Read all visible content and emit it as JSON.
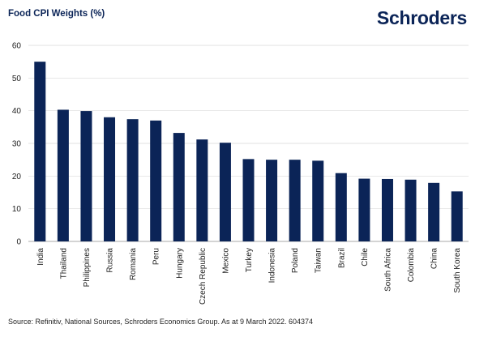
{
  "header": {
    "title": "Food CPI Weights (%)",
    "brand": "Schroders"
  },
  "footer": {
    "source": "Source: Refinitiv, National Sources, Schroders Economics Group. As at 9 March 2022. 604374"
  },
  "colors": {
    "bar": "#0b2457",
    "grid": "#d9d9d9",
    "text": "#222222"
  },
  "chart_data": {
    "type": "bar",
    "title": "Food CPI Weights (%)",
    "xlabel": "",
    "ylabel": "",
    "ylim": [
      0,
      60
    ],
    "yticks": [
      0,
      10,
      20,
      30,
      40,
      50,
      60
    ],
    "grid": true,
    "categories": [
      "India",
      "Thailand",
      "Philippines",
      "Russia",
      "Romania",
      "Peru",
      "Hungary",
      "Czech Republic",
      "Mexico",
      "Turkey",
      "Indonesia",
      "Poland",
      "Taiwan",
      "Brazil",
      "Chile",
      "South Africa",
      "Colombia",
      "China",
      "South Korea"
    ],
    "values": [
      55,
      40.3,
      39.9,
      38,
      37.4,
      37,
      33.2,
      31.2,
      30.2,
      25.2,
      25,
      25,
      24.7,
      20.9,
      19.2,
      19.1,
      18.9,
      17.9,
      15.3
    ]
  }
}
